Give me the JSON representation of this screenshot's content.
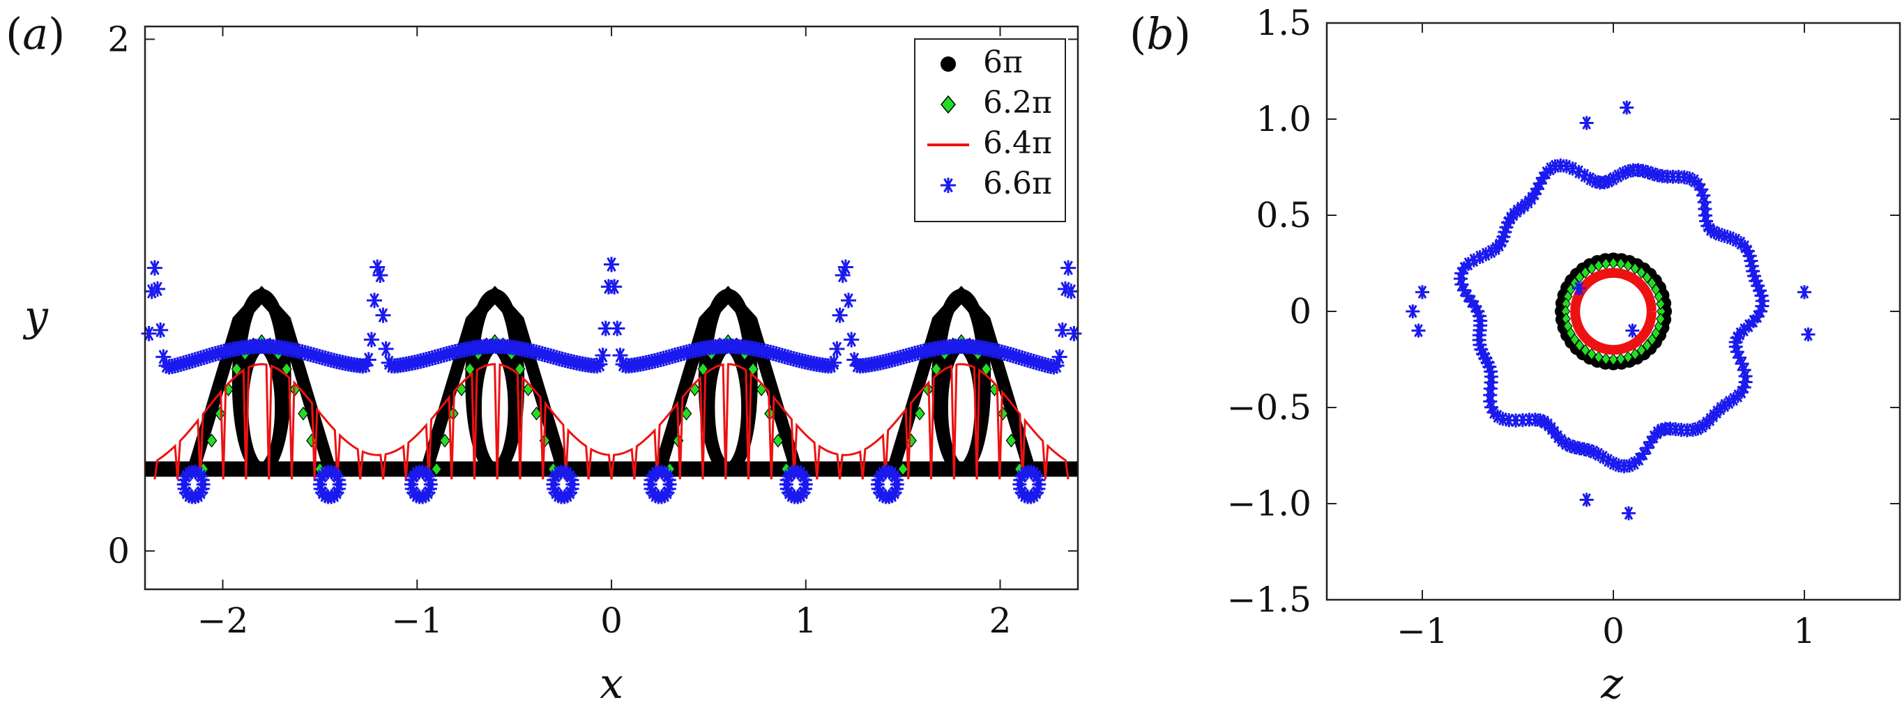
{
  "chart_data": [
    {
      "type": "scatter",
      "panel_label": "(a)",
      "xlabel": "x",
      "ylabel": "y",
      "xlim": [
        -2.4,
        2.4
      ],
      "ylim": [
        -0.15,
        2.05
      ],
      "xticks": [
        -2,
        -1,
        0,
        1,
        2
      ],
      "xtick_labels": [
        "−2",
        "−1",
        "0",
        "1",
        "2"
      ],
      "yticks": [
        0,
        2
      ],
      "ytick_labels": [
        "0",
        "2"
      ],
      "grid": false,
      "legend": "top-right",
      "series": [
        {
          "name": "6π",
          "marker": "circle",
          "color": "#000000"
        },
        {
          "name": "6.2π",
          "marker": "diamond",
          "color": "#22dd22"
        },
        {
          "name": "6.4π",
          "marker": "line",
          "color": "#ee1111"
        },
        {
          "name": "6.6π",
          "marker": "asterisk",
          "color": "#1a1aee"
        }
      ]
    },
    {
      "type": "scatter",
      "panel_label": "(b)",
      "xlabel": "z",
      "xlim": [
        -1.5,
        1.5
      ],
      "ylim": [
        -1.5,
        1.5
      ],
      "xticks": [
        -1,
        0,
        1
      ],
      "xtick_labels": [
        "−1",
        "0",
        "1"
      ],
      "yticks": [
        1.5,
        1.0,
        0.5,
        0,
        -0.5,
        -1.0,
        -1.5
      ],
      "ytick_labels": [
        "1.5",
        "1.0",
        "0.5",
        "0",
        "−0.5",
        "−1.0",
        "−1.5"
      ],
      "grid": false,
      "series": [
        {
          "marker": "circle",
          "color": "#000000",
          "shape": "ring",
          "radius": 0.27
        },
        {
          "marker": "diamond",
          "color": "#22dd22",
          "shape": "ring",
          "radius": 0.25
        },
        {
          "marker": "line",
          "color": "#ee1111",
          "shape": "ring",
          "radius": 0.2
        },
        {
          "marker": "asterisk",
          "color": "#1a1aee",
          "shape": "ring",
          "radius": 0.74
        }
      ]
    }
  ]
}
